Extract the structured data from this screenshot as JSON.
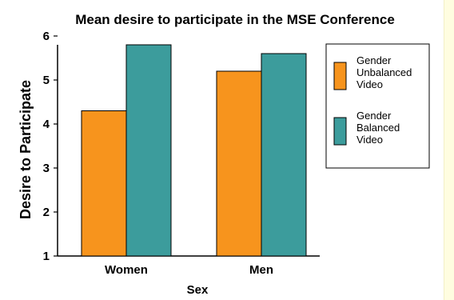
{
  "chart_data": {
    "type": "bar",
    "title": "Mean desire to participate in the MSE Conference",
    "xlabel": "Sex",
    "ylabel": "Desire to Participate",
    "categories": [
      "Women",
      "Men"
    ],
    "ylim": [
      1,
      6
    ],
    "yticks": [
      "1",
      "2",
      "3",
      "4",
      "5",
      "6"
    ],
    "series": [
      {
        "name": "Gender Unbalanced Video",
        "legend_lines": [
          "Gender",
          "Unbalanced",
          "Video"
        ],
        "color": "#f7941d",
        "values": [
          4.3,
          5.2
        ]
      },
      {
        "name": "Gender Balanced Video",
        "legend_lines": [
          "Gender",
          "Balanced",
          "Video"
        ],
        "color": "#3c9c9c",
        "values": [
          5.8,
          5.6
        ]
      }
    ],
    "legend_position": "right",
    "grid": false
  }
}
